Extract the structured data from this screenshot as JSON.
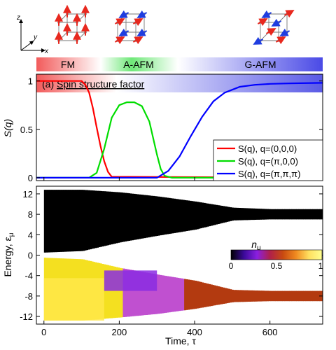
{
  "phase_bar": {
    "labels": [
      "FM",
      "A-AFM",
      "G-AFM"
    ],
    "colors": {
      "fm": "#f25b5b",
      "aafm": "#5fe86a",
      "gafm": "#5656e6"
    }
  },
  "cube_axes": {
    "z": "z",
    "y": "y",
    "x": "x"
  },
  "top_panel": {
    "title_prefix": "(a) ",
    "title": "Spin structure factor",
    "ylabel": "S(q)"
  },
  "bottom_panel": {
    "ylabel": "Energy, ε",
    "ylabel_sub": "μ",
    "xlabel": "Time, τ",
    "colorbar": {
      "label": "n",
      "label_sub": "μ",
      "ticks": [
        "0",
        "0.5",
        "1"
      ],
      "colors": [
        "#000000",
        "#3b0a9a",
        "#8a1fe0",
        "#b0204a",
        "#c84a10",
        "#f08a20",
        "#ffe060",
        "#ffff90"
      ]
    }
  },
  "chart_data": [
    {
      "type": "line",
      "title": "Spin structure factor",
      "xlabel": "",
      "ylabel": "S(q)",
      "xlim": [
        -20,
        740
      ],
      "ylim": [
        -0.03,
        1.07
      ],
      "yticks": [
        0,
        0.5,
        1
      ],
      "xticks": [
        0,
        200,
        400,
        600
      ],
      "legend_position": "right",
      "series": [
        {
          "name": "S(q), q=(0,0,0)",
          "color": "#ff0000",
          "x": [
            -20,
            100,
            110,
            120,
            130,
            140,
            150,
            160,
            170,
            180,
            740
          ],
          "y": [
            1.0,
            1.0,
            0.96,
            0.88,
            0.72,
            0.52,
            0.33,
            0.17,
            0.06,
            0.01,
            0.0
          ]
        },
        {
          "name": "S(q), q=(π,0,0)",
          "color": "#00dd00",
          "x": [
            -20,
            120,
            140,
            160,
            180,
            200,
            220,
            240,
            260,
            280,
            300,
            310,
            320,
            340,
            740
          ],
          "y": [
            0.0,
            0.0,
            0.05,
            0.3,
            0.62,
            0.75,
            0.78,
            0.78,
            0.74,
            0.58,
            0.24,
            0.09,
            0.02,
            0.0,
            0.0
          ]
        },
        {
          "name": "S(q), q=(π,π,π)",
          "color": "#0000ff",
          "x": [
            -20,
            300,
            330,
            360,
            390,
            420,
            450,
            480,
            520,
            560,
            600,
            650,
            740
          ],
          "y": [
            0.0,
            0.0,
            0.07,
            0.22,
            0.43,
            0.63,
            0.79,
            0.88,
            0.94,
            0.96,
            0.97,
            0.975,
            0.98
          ]
        }
      ]
    },
    {
      "type": "scatter",
      "title": "",
      "xlabel": "Time, τ",
      "ylabel": "Energy, ε_μ",
      "xlim": [
        -20,
        740
      ],
      "ylim": [
        -13.5,
        13.5
      ],
      "yticks": [
        -12,
        -8,
        -4,
        0,
        4,
        8,
        12
      ],
      "xticks": [
        0,
        200,
        400,
        600
      ],
      "bands": [
        {
          "name": "upper band",
          "color_value": "n_μ≈0",
          "x": [
            0,
            100,
            200,
            300,
            400,
            500,
            600,
            740
          ],
          "lower": [
            0.5,
            0.8,
            2.5,
            3.8,
            5.0,
            6.8,
            7.0,
            7.0
          ],
          "upper": [
            12.8,
            12.8,
            12.3,
            11.5,
            10.5,
            9.3,
            9.0,
            9.0
          ]
        },
        {
          "name": "lower band",
          "color_value": "n_μ≈1",
          "x": [
            0,
            100,
            200,
            300,
            400,
            500,
            600,
            740
          ],
          "lower": [
            -12.8,
            -12.8,
            -12.2,
            -11.5,
            -10.5,
            -9.2,
            -9.0,
            -9.0
          ],
          "upper": [
            -0.5,
            -0.8,
            -2.5,
            -3.8,
            -5.0,
            -6.8,
            -7.0,
            -7.0
          ]
        }
      ]
    }
  ]
}
